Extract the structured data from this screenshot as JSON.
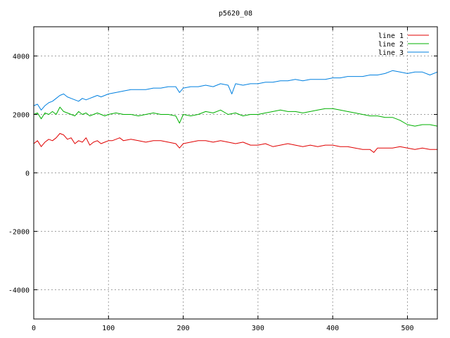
{
  "chart_data": {
    "type": "line",
    "title": "p5620_08",
    "xlabel": "",
    "ylabel": "",
    "xlim": [
      0,
      540
    ],
    "ylim": [
      -5000,
      5000
    ],
    "xticks": [
      0,
      100,
      200,
      300,
      400,
      500
    ],
    "yticks": [
      -4000,
      -2000,
      0,
      2000,
      4000
    ],
    "grid": true,
    "legend_position": "top-right",
    "series": [
      {
        "name": "line 1",
        "color": "#e00000",
        "x": [
          0,
          5,
          10,
          15,
          20,
          25,
          30,
          35,
          40,
          45,
          50,
          55,
          60,
          65,
          70,
          75,
          80,
          85,
          90,
          95,
          100,
          105,
          110,
          115,
          120,
          130,
          140,
          150,
          160,
          170,
          180,
          190,
          195,
          200,
          210,
          220,
          230,
          240,
          250,
          260,
          270,
          280,
          290,
          300,
          310,
          320,
          330,
          340,
          350,
          360,
          370,
          380,
          390,
          400,
          410,
          420,
          430,
          440,
          450,
          455,
          460,
          470,
          480,
          490,
          500,
          510,
          520,
          530,
          540
        ],
        "y": [
          1000,
          1100,
          900,
          1050,
          1150,
          1100,
          1200,
          1350,
          1300,
          1150,
          1200,
          1000,
          1100,
          1050,
          1200,
          950,
          1050,
          1100,
          1000,
          1050,
          1100,
          1100,
          1150,
          1200,
          1100,
          1150,
          1100,
          1050,
          1100,
          1100,
          1050,
          1000,
          850,
          1000,
          1050,
          1100,
          1100,
          1050,
          1100,
          1050,
          1000,
          1050,
          950,
          950,
          1000,
          900,
          950,
          1000,
          950,
          900,
          950,
          900,
          950,
          950,
          900,
          900,
          850,
          800,
          800,
          700,
          850,
          850,
          850,
          900,
          850,
          800,
          850,
          800,
          800
        ]
      },
      {
        "name": "line 2",
        "color": "#00b000",
        "x": [
          0,
          5,
          10,
          15,
          20,
          25,
          30,
          35,
          40,
          45,
          50,
          55,
          60,
          65,
          70,
          75,
          80,
          85,
          90,
          95,
          100,
          110,
          120,
          130,
          140,
          150,
          160,
          170,
          180,
          190,
          195,
          200,
          210,
          220,
          230,
          240,
          250,
          260,
          270,
          280,
          290,
          300,
          310,
          320,
          330,
          340,
          350,
          360,
          370,
          380,
          390,
          400,
          410,
          420,
          430,
          440,
          450,
          460,
          470,
          480,
          490,
          500,
          510,
          520,
          530,
          540
        ],
        "y": [
          2000,
          2050,
          1850,
          2050,
          2000,
          2100,
          2000,
          2250,
          2100,
          2050,
          2000,
          1950,
          2100,
          2000,
          2050,
          1950,
          2000,
          2050,
          2000,
          1950,
          2000,
          2050,
          2000,
          2000,
          1950,
          2000,
          2050,
          2000,
          2000,
          1950,
          1700,
          2000,
          1950,
          2000,
          2100,
          2050,
          2150,
          2000,
          2050,
          1950,
          2000,
          2000,
          2050,
          2100,
          2150,
          2100,
          2100,
          2050,
          2100,
          2150,
          2200,
          2200,
          2150,
          2100,
          2050,
          2000,
          1950,
          1950,
          1900,
          1900,
          1800,
          1650,
          1600,
          1650,
          1650,
          1600
        ]
      },
      {
        "name": "line 3",
        "color": "#0080e0",
        "x": [
          0,
          5,
          10,
          15,
          20,
          25,
          30,
          35,
          40,
          45,
          50,
          55,
          60,
          65,
          70,
          75,
          80,
          85,
          90,
          95,
          100,
          110,
          120,
          130,
          140,
          150,
          160,
          170,
          180,
          190,
          195,
          200,
          210,
          220,
          230,
          240,
          250,
          260,
          265,
          270,
          280,
          290,
          300,
          310,
          320,
          330,
          340,
          350,
          360,
          370,
          380,
          390,
          400,
          410,
          420,
          430,
          440,
          450,
          460,
          470,
          480,
          490,
          500,
          510,
          520,
          530,
          540
        ],
        "y": [
          2300,
          2350,
          2150,
          2300,
          2400,
          2450,
          2550,
          2650,
          2700,
          2600,
          2550,
          2500,
          2450,
          2550,
          2500,
          2550,
          2600,
          2650,
          2600,
          2650,
          2700,
          2750,
          2800,
          2850,
          2850,
          2850,
          2900,
          2900,
          2950,
          2950,
          2750,
          2900,
          2950,
          2950,
          3000,
          2950,
          3050,
          3000,
          2700,
          3050,
          3000,
          3050,
          3050,
          3100,
          3100,
          3150,
          3150,
          3200,
          3150,
          3200,
          3200,
          3200,
          3250,
          3250,
          3300,
          3300,
          3300,
          3350,
          3350,
          3400,
          3500,
          3450,
          3400,
          3450,
          3450,
          3350,
          3450
        ]
      }
    ]
  }
}
